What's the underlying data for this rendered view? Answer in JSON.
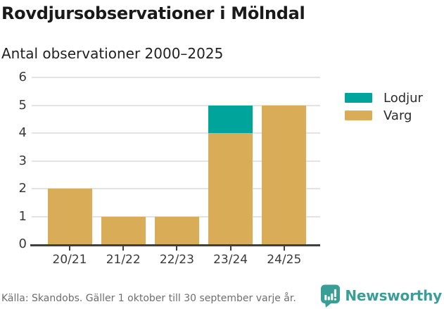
{
  "header": {
    "title": "Rovdjursobservationer i Mölndal",
    "subtitle": "Antal observationer 2000–2025"
  },
  "chart_data": {
    "type": "bar",
    "stacked": true,
    "title": "Rovdjursobservationer i Mölndal",
    "subtitle": "Antal observationer 2000–2025",
    "xlabel": "",
    "ylabel": "",
    "categories": [
      "20/21",
      "21/22",
      "22/23",
      "23/24",
      "24/25"
    ],
    "series": [
      {
        "name": "Varg",
        "color": "#d9ac58",
        "values": [
          2,
          1,
          1,
          4,
          5
        ]
      },
      {
        "name": "Lodjur",
        "color": "#00a49a",
        "values": [
          0,
          0,
          0,
          1,
          0
        ]
      }
    ],
    "totals": [
      2,
      1,
      1,
      5,
      5
    ],
    "ylim": [
      0,
      6
    ],
    "yticks": [
      0,
      1,
      2,
      3,
      4,
      5,
      6
    ],
    "grid": true,
    "legend_position": "right"
  },
  "legend": {
    "items": [
      {
        "label": "Lodjur",
        "color": "#00a49a"
      },
      {
        "label": "Varg",
        "color": "#d9ac58"
      }
    ]
  },
  "footer": {
    "source": "Källa: Skandobs. Gäller 1 oktober till 30 september varje år.",
    "brand": "Newsworthy"
  },
  "colors": {
    "lodjur": "#00a49a",
    "varg": "#d9ac58",
    "brand_teal": "#3b9e96",
    "gridline": "#e3e3e3",
    "axis": "#404040"
  }
}
